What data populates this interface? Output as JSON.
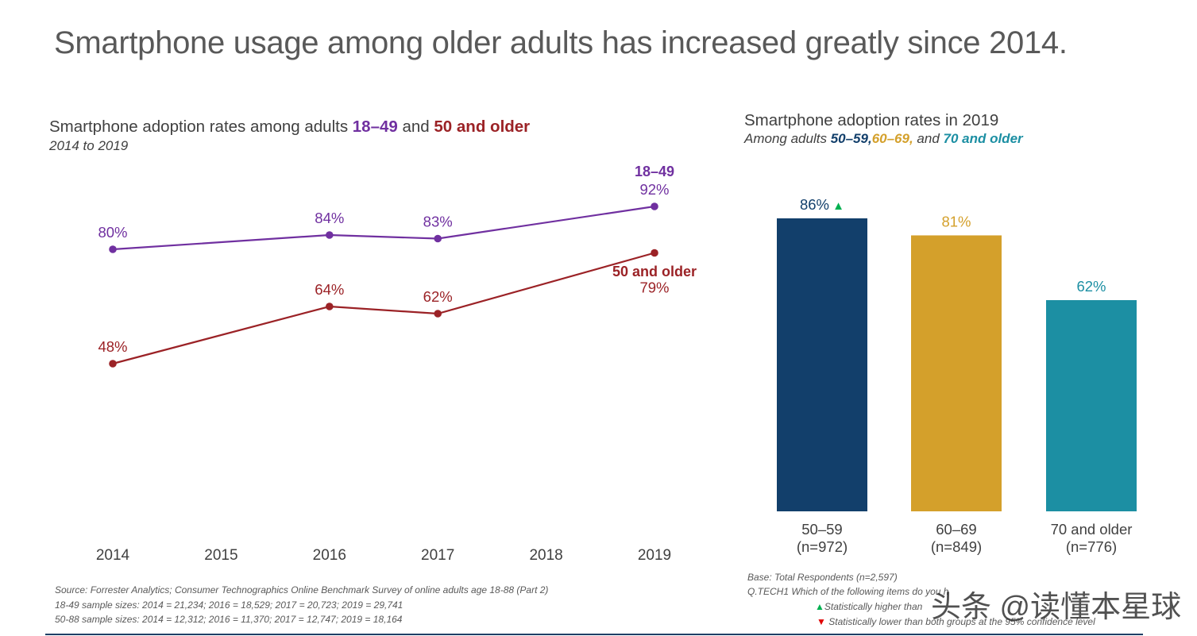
{
  "page": {
    "title": "Smartphone usage among older adults has increased greatly since 2014."
  },
  "colors": {
    "purple": "#7030a0",
    "red": "#9b2226",
    "navy": "#123f6b",
    "gold": "#d4a02b",
    "teal": "#1c8fa3",
    "up_arrow": "#00b050",
    "down_arrow": "#e00000"
  },
  "left_chart": {
    "title_prefix": "Smartphone adoption rates among adults ",
    "title_group1": "18–49",
    "title_and": " and ",
    "title_group2": "50 and older",
    "subtitle": "2014 to 2019",
    "end_label_1849": "18–49",
    "end_label_50": "50 and older"
  },
  "right_chart": {
    "title": "Smartphone adoption rates in 2019",
    "sub_prefix": "Among adults ",
    "sub_g1": "50–59,",
    "sub_g2": "60–69,",
    "sub_and": " and ",
    "sub_g3": "70 and older"
  },
  "chart_data": [
    {
      "type": "line",
      "title": "Smartphone adoption rates among adults 18–49 and 50 and older",
      "subtitle": "2014 to 2019",
      "x_categories": [
        "2014",
        "2015",
        "2016",
        "2017",
        "2018",
        "2019"
      ],
      "ylim": [
        30,
        100
      ],
      "grid": false,
      "series": [
        {
          "name": "18–49",
          "color": "#7030a0",
          "points": [
            {
              "x": "2014",
              "y": 80,
              "label": "80%"
            },
            {
              "x": "2016",
              "y": 84,
              "label": "84%"
            },
            {
              "x": "2017",
              "y": 83,
              "label": "83%"
            },
            {
              "x": "2019",
              "y": 92,
              "label": "92%"
            }
          ]
        },
        {
          "name": "50 and older",
          "color": "#9b2226",
          "points": [
            {
              "x": "2014",
              "y": 48,
              "label": "48%"
            },
            {
              "x": "2016",
              "y": 64,
              "label": "64%"
            },
            {
              "x": "2017",
              "y": 62,
              "label": "62%"
            },
            {
              "x": "2019",
              "y": 79,
              "label": "79%"
            }
          ]
        }
      ]
    },
    {
      "type": "bar",
      "title": "Smartphone adoption rates in 2019",
      "subtitle": "Among adults 50–59, 60–69, and 70 and older",
      "ylim": [
        0,
        100
      ],
      "grid": false,
      "bars": [
        {
          "category": "50–59",
          "n_label": "(n=972)",
          "value": 86,
          "label": "86%",
          "color": "#123f6b",
          "marker": "▲"
        },
        {
          "category": "60–69",
          "n_label": "(n=849)",
          "value": 81,
          "label": "81%",
          "color": "#d4a02b",
          "marker": ""
        },
        {
          "category": "70 and older",
          "n_label": "(n=776)",
          "value": 62,
          "label": "62%",
          "color": "#1c8fa3",
          "marker": ""
        }
      ]
    }
  ],
  "footnotes": {
    "source": "Source: Forrester Analytics; Consumer Technographics Online Benchmark Survey of online adults age 18-88 (Part 2)",
    "sample_1849": "18-49 sample sizes: 2014 = 21,234; 2016 = 18,529; 2017 = 20,723; 2019 = 29,741",
    "sample_5088": "50-88 sample sizes: 2014 = 12,312; 2016 = 11,370; 2017 = 12,747; 2019 = 18,164",
    "base": "Base: Total Respondents (n=2,597)",
    "question": "Q.TECH1 Which of the following items do you h",
    "up_glyph": "▲",
    "up_note": "Statistically higher than",
    "down_glyph": "▼",
    "down_note": "Statistically lower than both groups at the 95% confidence level"
  },
  "watermark": "头条 @读懂本星球"
}
